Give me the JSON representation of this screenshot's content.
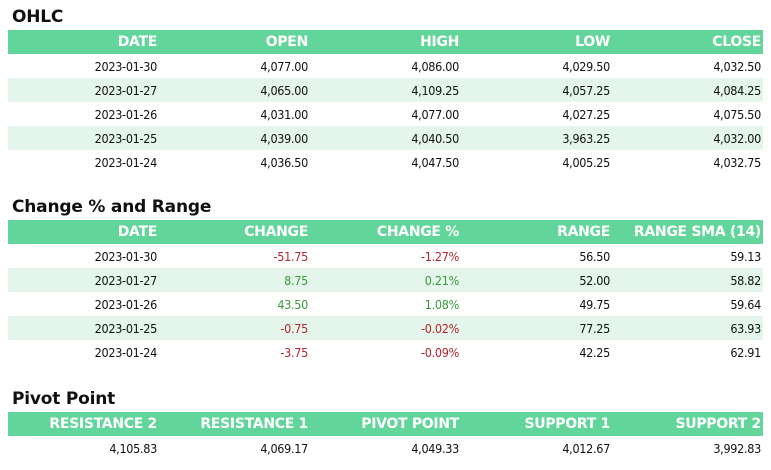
{
  "ohlc": {
    "title": "OHLC",
    "headers": [
      "DATE",
      "OPEN",
      "HIGH",
      "LOW",
      "CLOSE"
    ],
    "rows": [
      [
        "2023-01-30",
        "4,077.00",
        "4,086.00",
        "4,029.50",
        "4,032.50"
      ],
      [
        "2023-01-27",
        "4,065.00",
        "4,109.25",
        "4,057.25",
        "4,084.25"
      ],
      [
        "2023-01-26",
        "4,031.00",
        "4,077.00",
        "4,027.25",
        "4,075.50"
      ],
      [
        "2023-01-25",
        "4,039.00",
        "4,040.50",
        "3,963.25",
        "4,032.00"
      ],
      [
        "2023-01-24",
        "4,036.50",
        "4,047.50",
        "4,005.25",
        "4,032.75"
      ]
    ]
  },
  "change": {
    "title": "Change % and Range",
    "headers": [
      "DATE",
      "CHANGE",
      "CHANGE %",
      "RANGE",
      "RANGE SMA (14)"
    ],
    "rows": [
      [
        "2023-01-30",
        "-51.75",
        "-1.27%",
        "56.50",
        "59.13"
      ],
      [
        "2023-01-27",
        "8.75",
        "0.21%",
        "52.00",
        "58.82"
      ],
      [
        "2023-01-26",
        "43.50",
        "1.08%",
        "49.75",
        "59.64"
      ],
      [
        "2023-01-25",
        "-0.75",
        "-0.02%",
        "77.25",
        "63.93"
      ],
      [
        "2023-01-24",
        "-3.75",
        "-0.09%",
        "42.25",
        "62.91"
      ]
    ],
    "sign": [
      "neg",
      "pos",
      "pos",
      "neg",
      "neg"
    ]
  },
  "pivot": {
    "title": "Pivot Point",
    "headers": [
      "RESISTANCE 2",
      "RESISTANCE 1",
      "PIVOT POINT",
      "SUPPORT 1",
      "SUPPORT 2"
    ],
    "values": [
      "4,105.83",
      "4,069.17",
      "4,049.33",
      "4,012.67",
      "3,992.83"
    ]
  },
  "colors": {
    "header_bg": "#62d69a",
    "alt_row_bg": "#e4f6ec",
    "negative": "#b3262e",
    "positive": "#3a9a3a"
  }
}
